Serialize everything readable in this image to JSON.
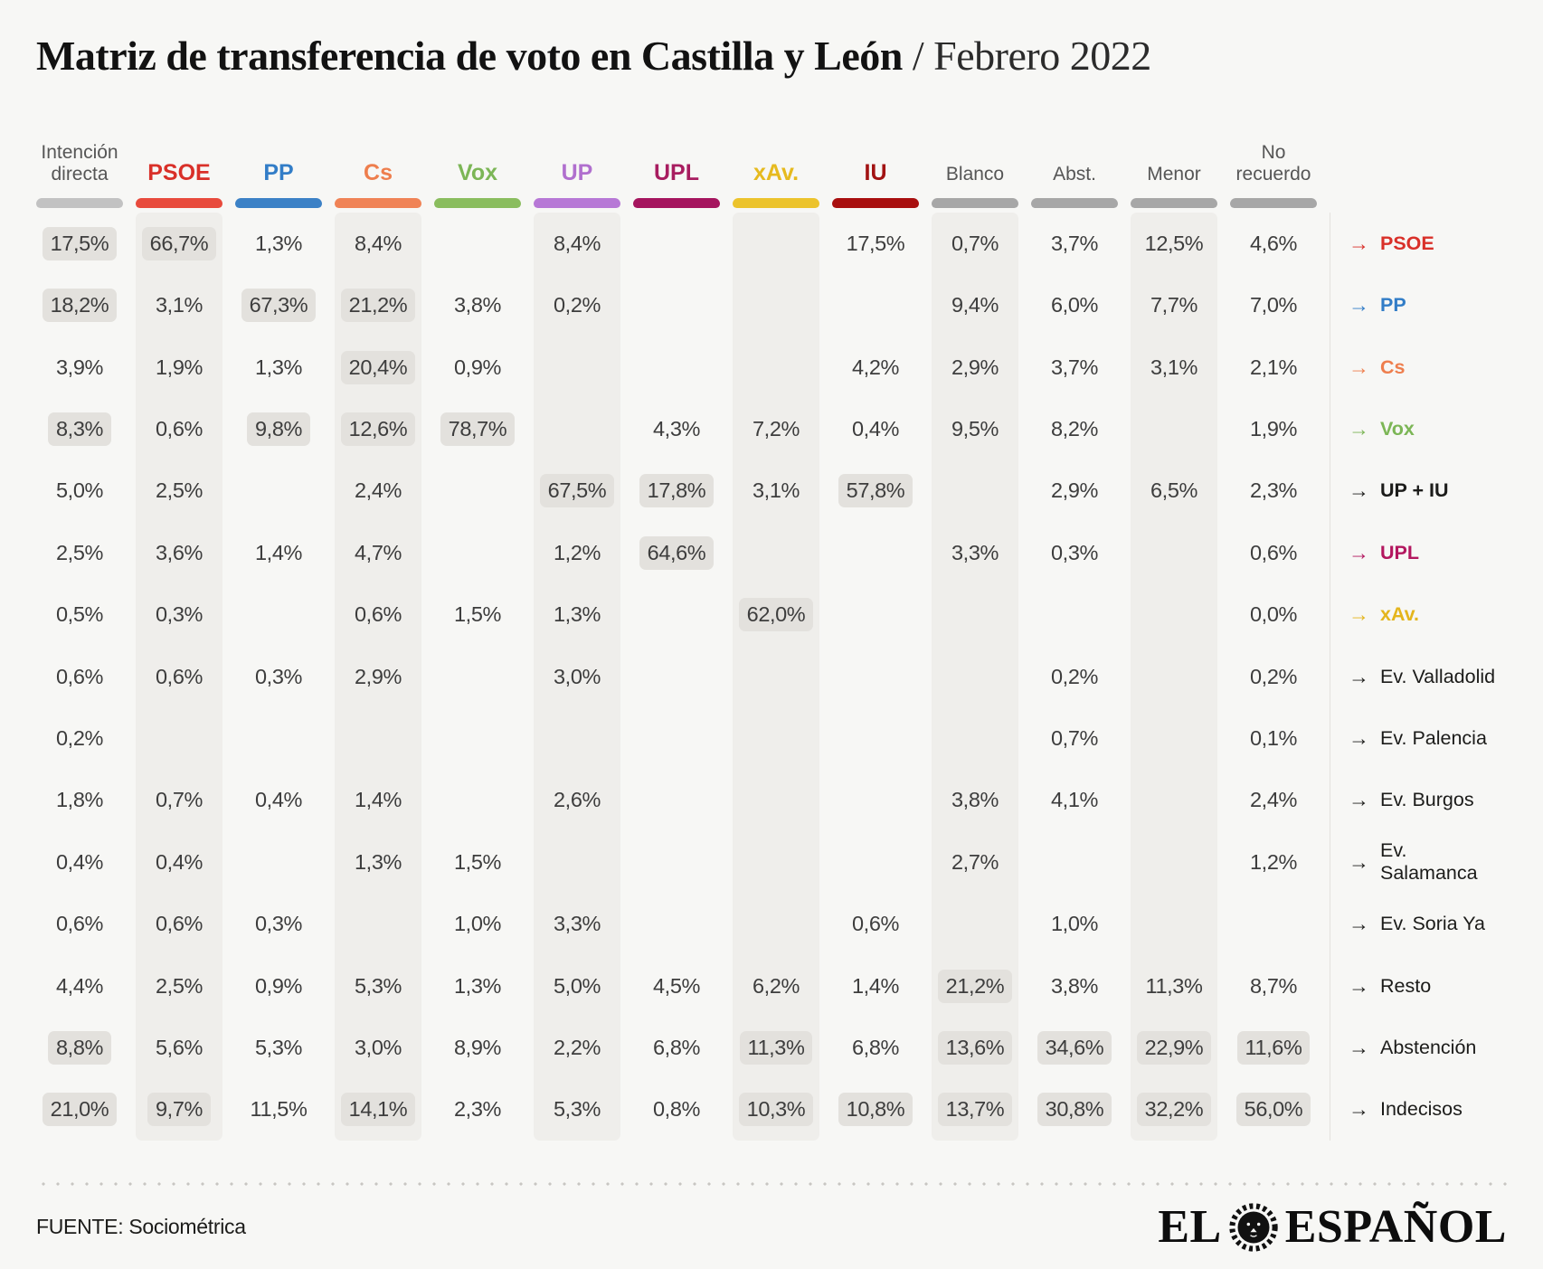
{
  "title": {
    "main": "Matriz de transferencia de voto en Castilla y León",
    "suffix": " / Febrero 2022"
  },
  "footer": {
    "source": "FUENTE: Sociométrica",
    "brand_el": "EL",
    "brand_espanol": "ESPAÑOL",
    "brand_icon": "lion-icon"
  },
  "colors": {
    "background": "#f7f7f5",
    "column_stripe": "#efeeeb",
    "cell_highlight": "#e3e1dd",
    "value_text": "#3d3d3d",
    "gray_header_text": "#565656"
  },
  "chart_data": {
    "type": "table",
    "title": "Matriz de transferencia de voto en Castilla y León / Febrero 2022",
    "arrow": "→",
    "columns": [
      {
        "id": "intencion-directa",
        "label": "Intención\ndirecta",
        "party": false,
        "text_color": "#565656",
        "bar_color": "#c2c2c2",
        "striped": false
      },
      {
        "id": "psoe",
        "label": "PSOE",
        "party": true,
        "text_color": "#d93029",
        "bar_color": "#e84a3c",
        "striped": true
      },
      {
        "id": "pp",
        "label": "PP",
        "party": true,
        "text_color": "#327dc7",
        "bar_color": "#3c81c6",
        "striped": false
      },
      {
        "id": "cs",
        "label": "Cs",
        "party": true,
        "text_color": "#ee7e4d",
        "bar_color": "#f08356",
        "striped": true
      },
      {
        "id": "vox",
        "label": "Vox",
        "party": true,
        "text_color": "#7cb656",
        "bar_color": "#8abd5e",
        "striped": false
      },
      {
        "id": "up",
        "label": "UP",
        "party": true,
        "text_color": "#b06fce",
        "bar_color": "#b778d6",
        "striped": true
      },
      {
        "id": "upl",
        "label": "UPL",
        "party": true,
        "text_color": "#a81d60",
        "bar_color": "#a5155e",
        "striped": false
      },
      {
        "id": "xav",
        "label": "xAv.",
        "party": true,
        "text_color": "#e6ba1e",
        "bar_color": "#ecc32c",
        "striped": true
      },
      {
        "id": "iu",
        "label": "IU",
        "party": true,
        "text_color": "#a21313",
        "bar_color": "#a80f0f",
        "striped": false
      },
      {
        "id": "blanco",
        "label": "Blanco",
        "party": false,
        "text_color": "#565656",
        "bar_color": "#a7a7a7",
        "striped": true
      },
      {
        "id": "abst",
        "label": "Abst.",
        "party": false,
        "text_color": "#565656",
        "bar_color": "#a7a7a7",
        "striped": false
      },
      {
        "id": "menor",
        "label": "Menor",
        "party": false,
        "text_color": "#565656",
        "bar_color": "#a7a7a7",
        "striped": true
      },
      {
        "id": "no-recuerdo",
        "label": "No\nrecuerdo",
        "party": false,
        "text_color": "#565656",
        "bar_color": "#a7a7a7",
        "striped": false
      }
    ],
    "rows": [
      {
        "id": "psoe",
        "label": "PSOE",
        "party": true,
        "color": "#d93029",
        "cells": [
          "17,5%",
          "66,7%",
          "1,3%",
          "8,4%",
          "",
          "8,4%",
          "",
          "",
          "17,5%",
          "0,7%",
          "3,7%",
          "12,5%",
          "4,6%"
        ],
        "hl": [
          0,
          1
        ]
      },
      {
        "id": "pp",
        "label": "PP",
        "party": true,
        "color": "#327dc7",
        "cells": [
          "18,2%",
          "3,1%",
          "67,3%",
          "21,2%",
          "3,8%",
          "0,2%",
          "",
          "",
          "",
          "9,4%",
          "6,0%",
          "7,7%",
          "7,0%"
        ],
        "hl": [
          0,
          2,
          3
        ]
      },
      {
        "id": "cs",
        "label": "Cs",
        "party": true,
        "color": "#ee7e4d",
        "cells": [
          "3,9%",
          "1,9%",
          "1,3%",
          "20,4%",
          "0,9%",
          "",
          "",
          "",
          "4,2%",
          "2,9%",
          "3,7%",
          "3,1%",
          "2,1%"
        ],
        "hl": [
          3
        ]
      },
      {
        "id": "vox",
        "label": "Vox",
        "party": true,
        "color": "#7cb656",
        "cells": [
          "8,3%",
          "0,6%",
          "9,8%",
          "12,6%",
          "78,7%",
          "",
          "4,3%",
          "7,2%",
          "0,4%",
          "9,5%",
          "8,2%",
          "",
          "1,9%"
        ],
        "hl": [
          0,
          2,
          3,
          4
        ]
      },
      {
        "id": "up-iu",
        "label": "UP + IU",
        "party": true,
        "color": "#1c1c1a",
        "cells": [
          "5,0%",
          "2,5%",
          "",
          "2,4%",
          "",
          "67,5%",
          "17,8%",
          "3,1%",
          "57,8%",
          "",
          "2,9%",
          "6,5%",
          "2,3%"
        ],
        "hl": [
          5,
          6,
          8
        ]
      },
      {
        "id": "upl",
        "label": "UPL",
        "party": true,
        "color": "#b3175f",
        "cells": [
          "2,5%",
          "3,6%",
          "1,4%",
          "4,7%",
          "",
          "1,2%",
          "64,6%",
          "",
          "",
          "3,3%",
          "0,3%",
          "",
          "0,6%"
        ],
        "hl": [
          6
        ]
      },
      {
        "id": "xav",
        "label": "xAv.",
        "party": true,
        "color": "#e4b51c",
        "cells": [
          "0,5%",
          "0,3%",
          "",
          "0,6%",
          "1,5%",
          "1,3%",
          "",
          "62,0%",
          "",
          "",
          "",
          "",
          "0,0%"
        ],
        "hl": [
          7
        ]
      },
      {
        "id": "ev-valladolid",
        "label": "Ev. Valladolid",
        "party": false,
        "color": "#1c1c1a",
        "cells": [
          "0,6%",
          "0,6%",
          "0,3%",
          "2,9%",
          "",
          "3,0%",
          "",
          "",
          "",
          "",
          "0,2%",
          "",
          "0,2%"
        ],
        "hl": []
      },
      {
        "id": "ev-palencia",
        "label": "Ev. Palencia",
        "party": false,
        "color": "#1c1c1a",
        "cells": [
          "0,2%",
          "",
          "",
          "",
          "",
          "",
          "",
          "",
          "",
          "",
          "0,7%",
          "",
          "0,1%"
        ],
        "hl": []
      },
      {
        "id": "ev-burgos",
        "label": "Ev. Burgos",
        "party": false,
        "color": "#1c1c1a",
        "cells": [
          "1,8%",
          "0,7%",
          "0,4%",
          "1,4%",
          "",
          "2,6%",
          "",
          "",
          "",
          "3,8%",
          "4,1%",
          "",
          "2,4%"
        ],
        "hl": []
      },
      {
        "id": "ev-salamanca",
        "label": "Ev. Salamanca",
        "party": false,
        "color": "#1c1c1a",
        "cells": [
          "0,4%",
          "0,4%",
          "",
          "1,3%",
          "1,5%",
          "",
          "",
          "",
          "",
          "2,7%",
          "",
          "",
          "1,2%"
        ],
        "hl": []
      },
      {
        "id": "ev-soria-ya",
        "label": "Ev. Soria Ya",
        "party": false,
        "color": "#1c1c1a",
        "cells": [
          "0,6%",
          "0,6%",
          "0,3%",
          "",
          "1,0%",
          "3,3%",
          "",
          "",
          "0,6%",
          "",
          "1,0%",
          "",
          ""
        ],
        "hl": []
      },
      {
        "id": "resto",
        "label": "Resto",
        "party": false,
        "color": "#1c1c1a",
        "cells": [
          "4,4%",
          "2,5%",
          "0,9%",
          "5,3%",
          "1,3%",
          "5,0%",
          "4,5%",
          "6,2%",
          "1,4%",
          "21,2%",
          "3,8%",
          "11,3%",
          "8,7%"
        ],
        "hl": [
          9
        ]
      },
      {
        "id": "abstencion",
        "label": "Abstención",
        "party": false,
        "color": "#1c1c1a",
        "cells": [
          "8,8%",
          "5,6%",
          "5,3%",
          "3,0%",
          "8,9%",
          "2,2%",
          "6,8%",
          "11,3%",
          "6,8%",
          "13,6%",
          "34,6%",
          "22,9%",
          "11,6%"
        ],
        "hl": [
          0,
          7,
          9,
          10,
          11,
          12
        ]
      },
      {
        "id": "indecisos",
        "label": "Indecisos",
        "party": false,
        "color": "#1c1c1a",
        "cells": [
          "21,0%",
          "9,7%",
          "11,5%",
          "14,1%",
          "2,3%",
          "5,3%",
          "0,8%",
          "10,3%",
          "10,8%",
          "13,7%",
          "30,8%",
          "32,2%",
          "56,0%"
        ],
        "hl": [
          0,
          1,
          3,
          7,
          8,
          9,
          10,
          11,
          12
        ]
      }
    ]
  }
}
